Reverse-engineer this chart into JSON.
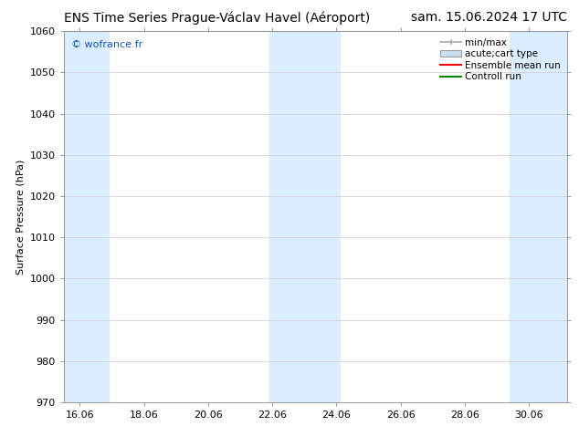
{
  "title_left": "ENS Time Series Prague-Václav Havel (Aéroport)",
  "title_right": "sam. 15.06.2024 17 UTC",
  "ylabel": "Surface Pressure (hPa)",
  "ylim": [
    970,
    1060
  ],
  "yticks": [
    970,
    980,
    990,
    1000,
    1010,
    1020,
    1030,
    1040,
    1050,
    1060
  ],
  "xlim_start": 15.5,
  "xlim_end": 31.2,
  "xtick_labels": [
    "16.06",
    "18.06",
    "20.06",
    "22.06",
    "24.06",
    "26.06",
    "28.06",
    "30.06"
  ],
  "xtick_positions": [
    16.0,
    18.0,
    20.0,
    22.0,
    24.0,
    26.0,
    28.0,
    30.0
  ],
  "shaded_bands": [
    {
      "x_start": 15.5,
      "x_end": 16.9
    },
    {
      "x_start": 21.9,
      "x_end": 24.1
    },
    {
      "x_start": 29.4,
      "x_end": 31.2
    }
  ],
  "shaded_color": "#daeeff",
  "watermark": "© wofrance.fr",
  "watermark_color": "#1155bb",
  "bg_color": "#ffffff",
  "plot_bg_color": "#ffffff",
  "grid_color": "#cccccc",
  "legend_items": [
    {
      "label": "min/max",
      "color": "#aaaaaa",
      "style": "errorbar"
    },
    {
      "label": "acute;cart type",
      "color": "#c8dff0",
      "style": "box"
    },
    {
      "label": "Ensemble mean run",
      "color": "#ff0000",
      "style": "line"
    },
    {
      "label": "Controll run",
      "color": "#008800",
      "style": "line"
    }
  ],
  "title_fontsize": 10,
  "axis_fontsize": 8,
  "tick_fontsize": 8,
  "legend_fontsize": 7.5
}
